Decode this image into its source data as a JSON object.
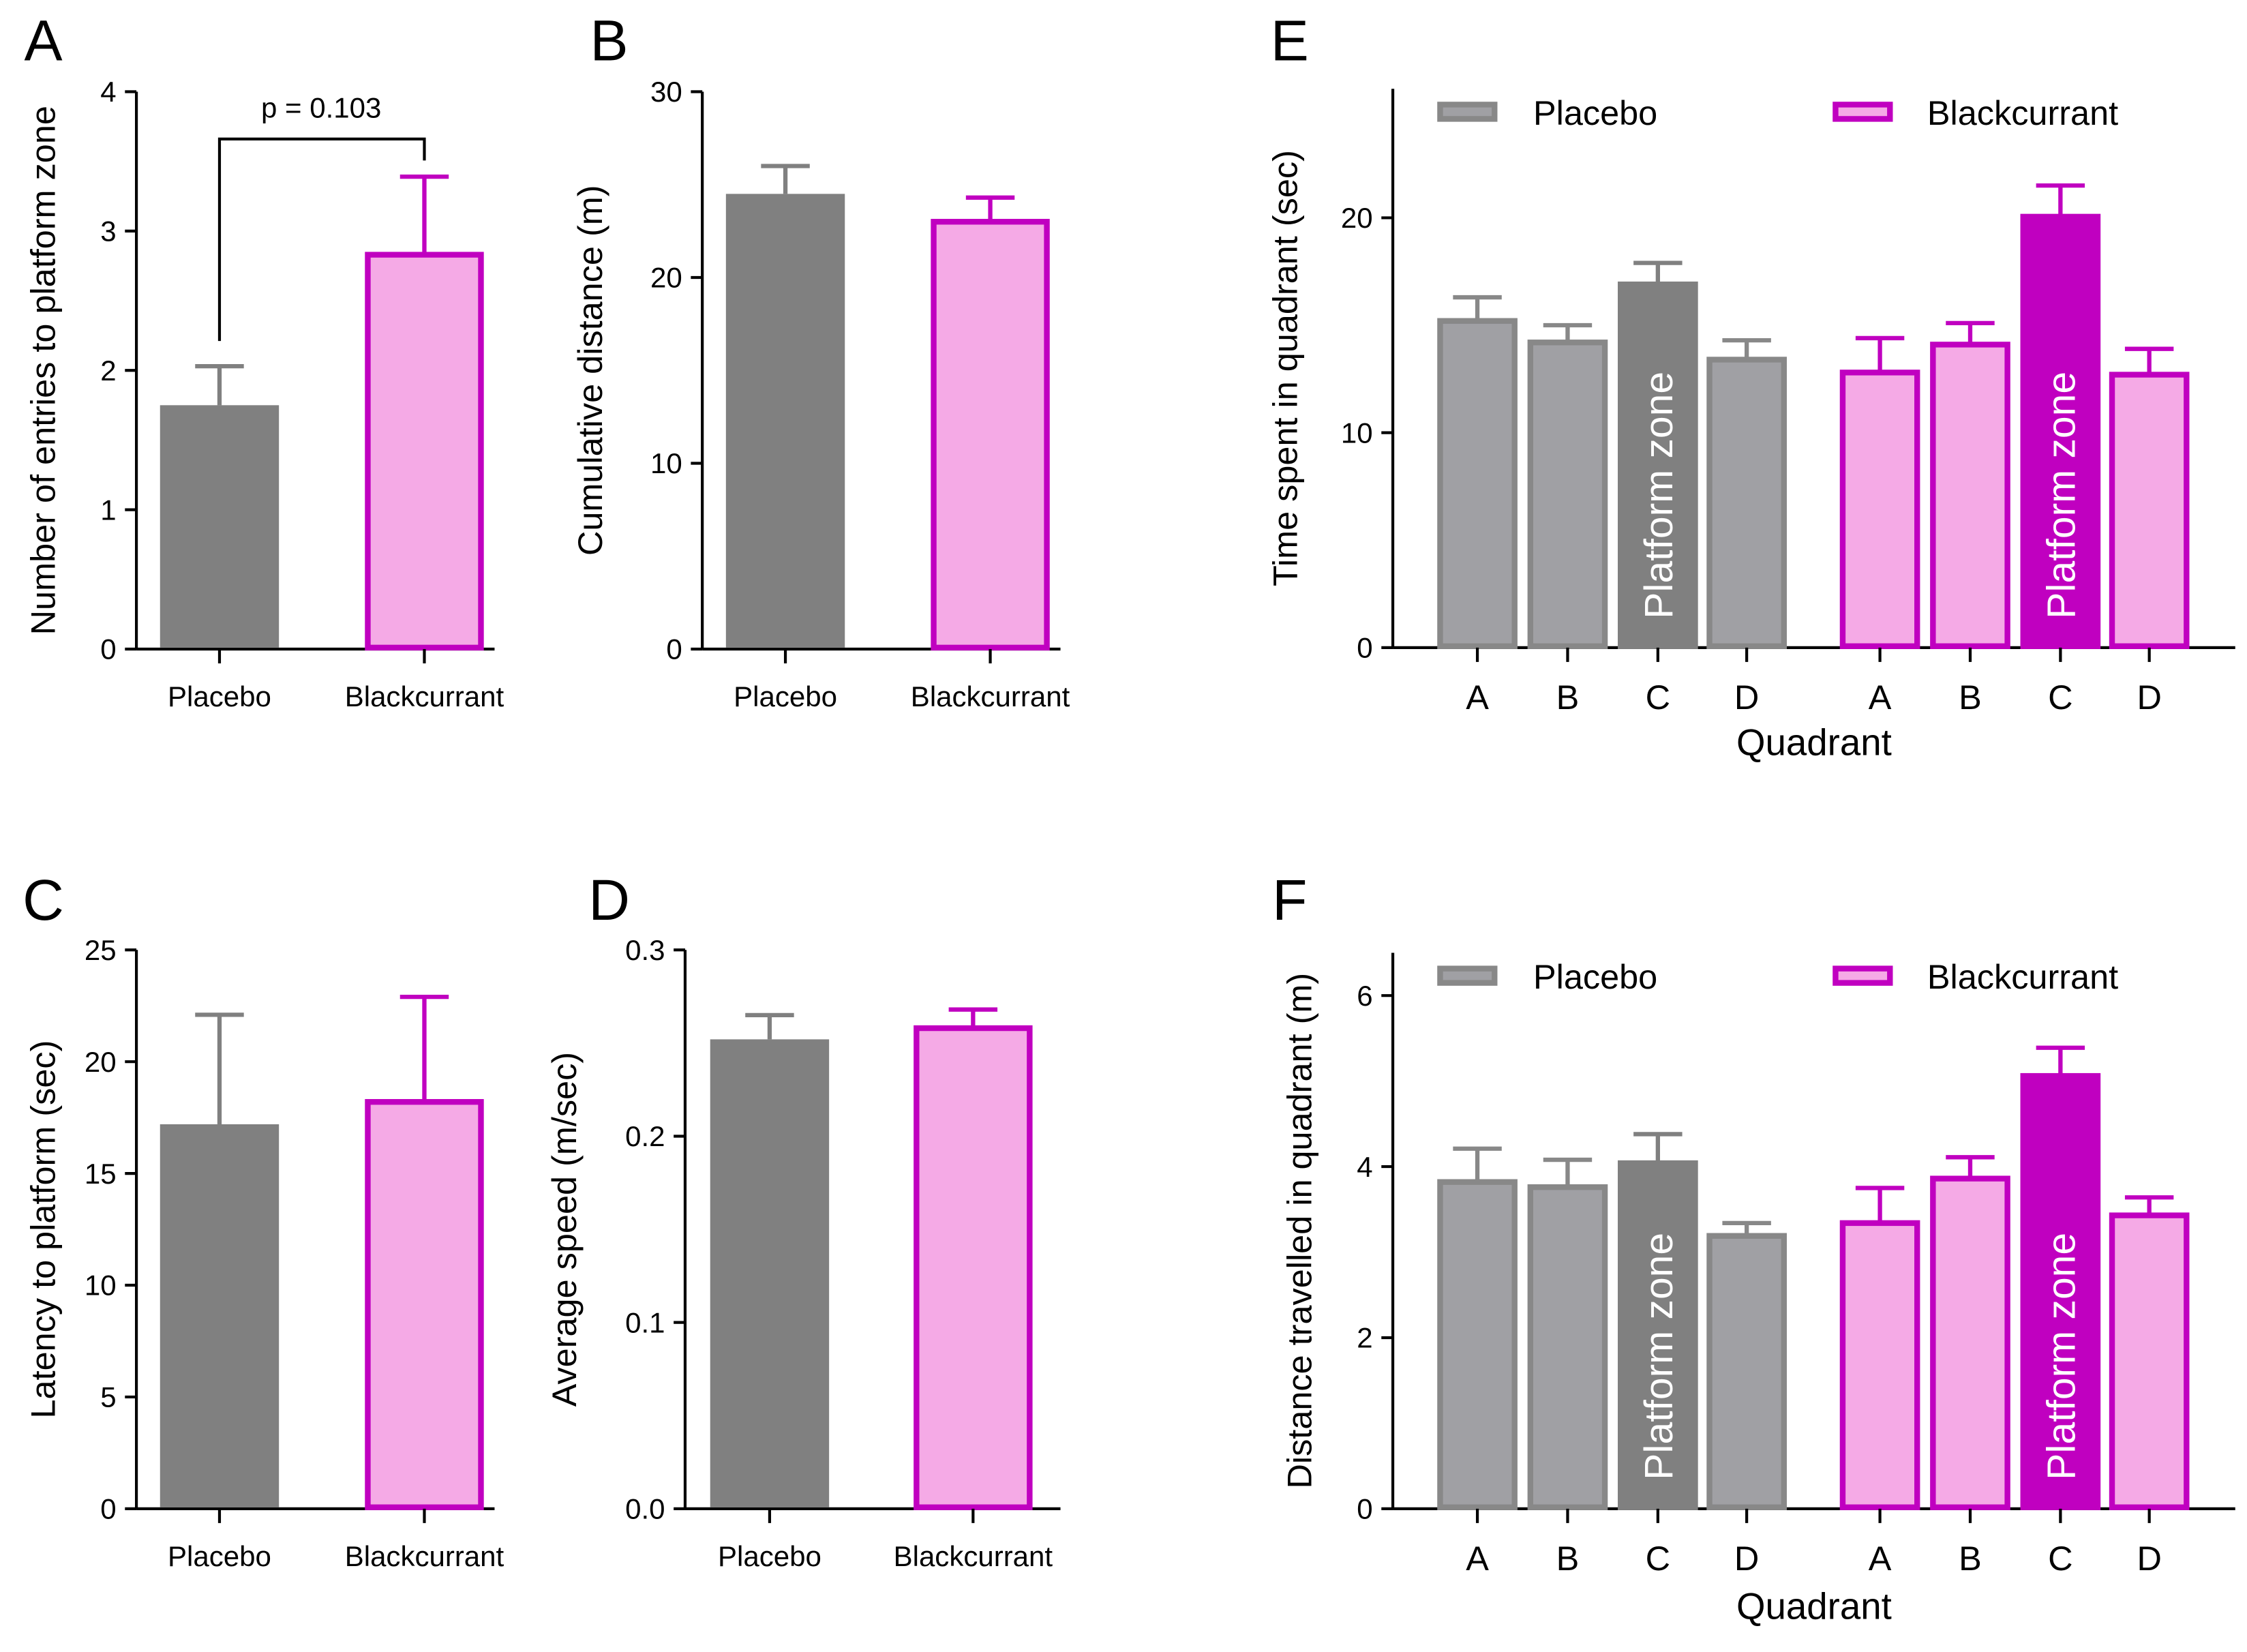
{
  "colors": {
    "placebo_fill": "#808080",
    "placebo_light": "#a0a0a4",
    "placebo_stroke": "#888888",
    "bc_fill": "#f5aae6",
    "bc_stroke": "#c000c0",
    "bc_dark": "#c000c0",
    "axis": "#000000"
  },
  "chart_data": [
    {
      "panel": "A",
      "type": "bar",
      "ylabel": "Number of entries to platform zone",
      "categories": [
        "Placebo",
        "Blackcurrant"
      ],
      "values": [
        1.75,
        2.83
      ],
      "errors": [
        2.03,
        3.39
      ],
      "ylim": [
        0,
        4
      ],
      "yticks": [
        "0",
        "1",
        "2",
        "3",
        "4"
      ],
      "annotation": "p = 0.103"
    },
    {
      "panel": "B",
      "type": "bar",
      "ylabel": "Cumulative distance (m)",
      "categories": [
        "Placebo",
        "Blackcurrant"
      ],
      "values": [
        24.5,
        23.0
      ],
      "errors": [
        26.0,
        24.3
      ],
      "ylim": [
        0,
        30
      ],
      "yticks": [
        "0",
        "10",
        "20",
        "30"
      ]
    },
    {
      "panel": "C",
      "type": "bar",
      "ylabel": "Latency to platform (sec)",
      "categories": [
        "Placebo",
        "Blackcurrant"
      ],
      "values": [
        17.2,
        18.2
      ],
      "errors": [
        22.1,
        22.9
      ],
      "ylim": [
        0,
        25
      ],
      "yticks": [
        "0",
        "5",
        "10",
        "15",
        "20",
        "25"
      ]
    },
    {
      "panel": "D",
      "type": "bar",
      "ylabel": "Average speed (m/sec)",
      "categories": [
        "Placebo",
        "Blackcurrant"
      ],
      "values": [
        0.252,
        0.258
      ],
      "errors": [
        0.265,
        0.268
      ],
      "ylim": [
        0,
        0.3
      ],
      "yticks": [
        "0.0",
        "0.1",
        "0.2",
        "0.3"
      ]
    },
    {
      "panel": "E",
      "type": "bar",
      "ylabel": "Time spent in quadrant (sec)",
      "xlabel": "Quadrant",
      "categories": [
        "A",
        "B",
        "C",
        "D"
      ],
      "series": [
        {
          "name": "Placebo",
          "values": [
            15.2,
            14.2,
            16.9,
            13.4
          ],
          "errors": [
            16.3,
            15.0,
            17.9,
            14.3
          ]
        },
        {
          "name": "Blackcurrant",
          "values": [
            12.8,
            14.1,
            20.05,
            12.7
          ],
          "errors": [
            14.4,
            15.1,
            21.5,
            13.9
          ]
        }
      ],
      "highlight": "Platform zone",
      "ylim": [
        0,
        26
      ],
      "yticks": [
        "0",
        "10",
        "20"
      ],
      "legend": "top"
    },
    {
      "panel": "F",
      "type": "bar",
      "ylabel": "Distance travelled in quadrant (m)",
      "xlabel": "Quadrant",
      "categories": [
        "A",
        "B",
        "C",
        "D"
      ],
      "series": [
        {
          "name": "Placebo",
          "values": [
            3.82,
            3.76,
            4.04,
            3.19
          ],
          "errors": [
            4.21,
            4.08,
            4.38,
            3.34
          ]
        },
        {
          "name": "Blackcurrant",
          "values": [
            3.34,
            3.86,
            5.06,
            3.43
          ],
          "errors": [
            3.75,
            4.11,
            5.39,
            3.64
          ]
        }
      ],
      "highlight": "Platform zone",
      "ylim": [
        0,
        6.5
      ],
      "yticks": [
        "0",
        "2",
        "4",
        "6"
      ],
      "legend": "top"
    }
  ]
}
